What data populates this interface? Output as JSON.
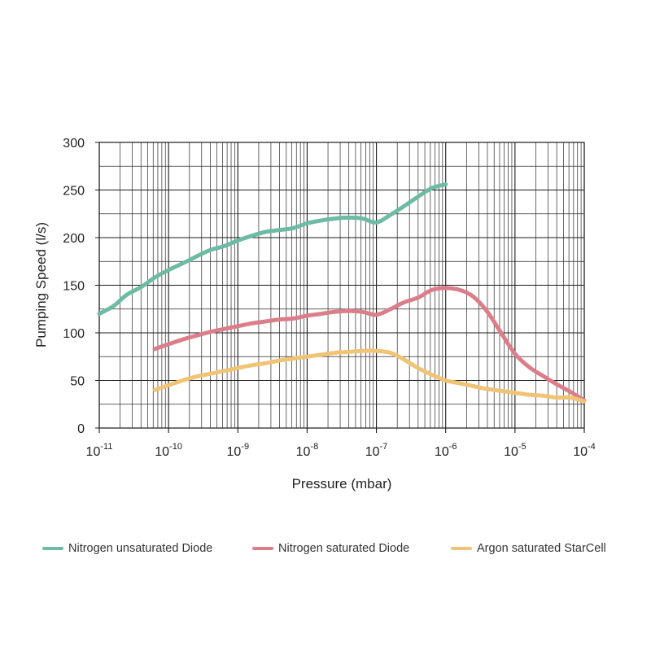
{
  "chart_data": {
    "type": "line",
    "title": "",
    "xlabel": "Pressure (mbar)",
    "ylabel": "Pumping Speed (l/s)",
    "xscale": "log",
    "xlim": [
      1e-11,
      0.0001
    ],
    "ylim": [
      0,
      300
    ],
    "x_ticks": [
      {
        "base": "10",
        "exp": "-11",
        "value": 1e-11
      },
      {
        "base": "10",
        "exp": "-10",
        "value": 1e-10
      },
      {
        "base": "10",
        "exp": "-9",
        "value": 1e-09
      },
      {
        "base": "10",
        "exp": "-8",
        "value": 1e-08
      },
      {
        "base": "10",
        "exp": "-7",
        "value": 1e-07
      },
      {
        "base": "10",
        "exp": "-6",
        "value": 1e-06
      },
      {
        "base": "10",
        "exp": "-5",
        "value": 1e-05
      },
      {
        "base": "10",
        "exp": "-4",
        "value": 0.0001
      }
    ],
    "y_ticks": [
      "0",
      "50",
      "100",
      "150",
      "200",
      "250",
      "300"
    ],
    "grid": true,
    "legend_position": "bottom",
    "series": [
      {
        "name": "Nitrogen unsaturated Diode",
        "color": "#6dbba5",
        "points": [
          [
            1e-11,
            120
          ],
          [
            1.6e-11,
            128
          ],
          [
            2.5e-11,
            140
          ],
          [
            4e-11,
            148
          ],
          [
            6.3e-11,
            158
          ],
          [
            1e-10,
            166
          ],
          [
            1.6e-10,
            173
          ],
          [
            2.5e-10,
            180
          ],
          [
            4e-10,
            187
          ],
          [
            6.3e-10,
            191
          ],
          [
            1e-09,
            197
          ],
          [
            1.6e-09,
            202
          ],
          [
            2.5e-09,
            206
          ],
          [
            4e-09,
            208
          ],
          [
            6.3e-09,
            210
          ],
          [
            1e-08,
            215
          ],
          [
            1.6e-08,
            218
          ],
          [
            2.5e-08,
            220
          ],
          [
            4e-08,
            221
          ],
          [
            6.3e-08,
            220
          ],
          [
            1e-07,
            216
          ],
          [
            1.6e-07,
            224
          ],
          [
            2.5e-07,
            233
          ],
          [
            4e-07,
            243
          ],
          [
            6.3e-07,
            252
          ],
          [
            1e-06,
            256
          ]
        ]
      },
      {
        "name": "Nitrogen saturated Diode",
        "color": "#dc7d8a",
        "points": [
          [
            6.3e-11,
            83
          ],
          [
            1e-10,
            88
          ],
          [
            1.6e-10,
            93
          ],
          [
            2.5e-10,
            97
          ],
          [
            4e-10,
            101
          ],
          [
            6.3e-10,
            104
          ],
          [
            1e-09,
            107
          ],
          [
            1.6e-09,
            110
          ],
          [
            2.5e-09,
            112
          ],
          [
            4e-09,
            114
          ],
          [
            6.3e-09,
            115
          ],
          [
            1e-08,
            118
          ],
          [
            1.6e-08,
            120
          ],
          [
            2.5e-08,
            122
          ],
          [
            4e-08,
            123
          ],
          [
            6.3e-08,
            122
          ],
          [
            1e-07,
            119
          ],
          [
            1.6e-07,
            125
          ],
          [
            2.5e-07,
            132
          ],
          [
            4e-07,
            137
          ],
          [
            6.3e-07,
            145
          ],
          [
            1e-06,
            147
          ],
          [
            1.6e-06,
            145
          ],
          [
            2.5e-06,
            138
          ],
          [
            4e-06,
            122
          ],
          [
            6.3e-06,
            100
          ],
          [
            1e-05,
            78
          ],
          [
            1.6e-05,
            64
          ],
          [
            2.5e-05,
            55
          ],
          [
            4e-05,
            46
          ],
          [
            6.3e-05,
            38
          ],
          [
            0.0001,
            29
          ]
        ]
      },
      {
        "name": "Argon saturated StarCell",
        "color": "#f0c474",
        "points": [
          [
            6.3e-11,
            40
          ],
          [
            1e-10,
            45
          ],
          [
            1.6e-10,
            50
          ],
          [
            2.5e-10,
            54
          ],
          [
            4e-10,
            57
          ],
          [
            6.3e-10,
            60
          ],
          [
            1e-09,
            63
          ],
          [
            1.6e-09,
            66
          ],
          [
            2.5e-09,
            68
          ],
          [
            4e-09,
            71
          ],
          [
            6.3e-09,
            73
          ],
          [
            1e-08,
            75
          ],
          [
            1.6e-08,
            77
          ],
          [
            2.5e-08,
            79
          ],
          [
            4e-08,
            80
          ],
          [
            6.3e-08,
            81
          ],
          [
            1e-07,
            81
          ],
          [
            1.6e-07,
            79
          ],
          [
            2.5e-07,
            72
          ],
          [
            4e-07,
            63
          ],
          [
            6.3e-07,
            56
          ],
          [
            1e-06,
            50
          ],
          [
            1.6e-06,
            47
          ],
          [
            2.5e-06,
            44
          ],
          [
            4e-06,
            41
          ],
          [
            6.3e-06,
            39
          ],
          [
            1e-05,
            37
          ],
          [
            1.6e-05,
            35
          ],
          [
            2.5e-05,
            34
          ],
          [
            4e-05,
            32
          ],
          [
            6.3e-05,
            32
          ],
          [
            0.0001,
            28
          ]
        ]
      }
    ]
  }
}
